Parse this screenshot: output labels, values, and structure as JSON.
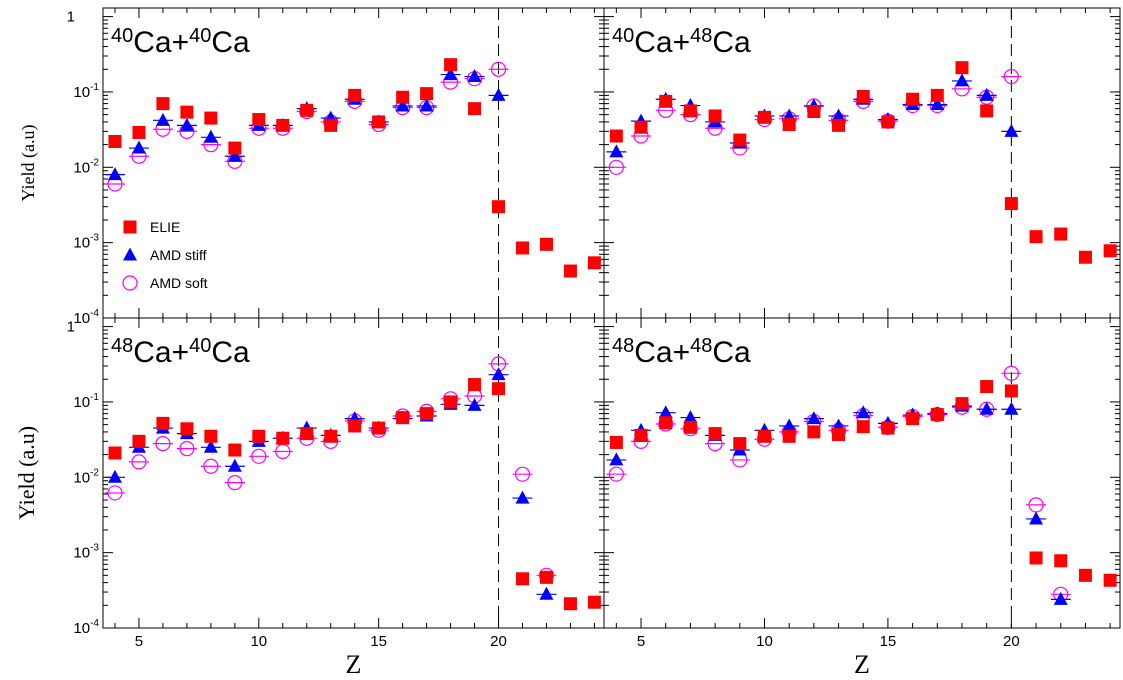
{
  "chart_data": {
    "type": "scatter",
    "xlabel": "Z",
    "ylabel": "Yield (a.u)",
    "xlim": [
      3.5,
      24.4
    ],
    "ylim": [
      0.0001,
      1.3
    ],
    "yscale": "log",
    "x_ticks": [
      "5",
      "10",
      "15",
      "20"
    ],
    "y_ticks": [
      {
        "base": "1",
        "exp": ""
      },
      {
        "base": "10",
        "exp": "-1"
      },
      {
        "base": "10",
        "exp": "-2"
      },
      {
        "base": "10",
        "exp": "-3"
      },
      {
        "base": "10",
        "exp": "-4"
      }
    ],
    "grid": false,
    "reference_line_x": 20,
    "legend": {
      "placement": "left-center of top-left panel",
      "entries": [
        "ELIE",
        "AMD stiff",
        "AMD soft"
      ]
    },
    "series_style": {
      "ELIE": {
        "marker": "square",
        "color": "#ff0000"
      },
      "AMD stiff": {
        "marker": "triangle",
        "color": "#0000ff"
      },
      "AMD soft": {
        "marker": "open-circle",
        "color": "#ff00ff"
      }
    },
    "panels": [
      {
        "title": {
          "m1": "40",
          "el1": "Ca+",
          "m2": "40",
          "el2": "Ca"
        },
        "series": [
          {
            "name": "ELIE",
            "x": [
              4,
              5,
              6,
              7,
              8,
              9,
              10,
              11,
              12,
              13,
              14,
              15,
              16,
              17,
              18,
              19,
              20,
              21,
              22,
              23,
              24
            ],
            "y": [
              0.022,
              0.029,
              0.07,
              0.054,
              0.045,
              0.018,
              0.043,
              0.036,
              0.057,
              0.036,
              0.09,
              0.04,
              0.085,
              0.095,
              0.23,
              0.06,
              0.003,
              0.00085,
              0.00095,
              0.00042,
              0.00054
            ]
          },
          {
            "name": "AMD stiff",
            "x": [
              4,
              5,
              6,
              7,
              8,
              9,
              10,
              11,
              12,
              13,
              14,
              15,
              16,
              17,
              18,
              19,
              20
            ],
            "y": [
              0.008,
              0.018,
              0.042,
              0.036,
              0.025,
              0.014,
              0.036,
              0.036,
              0.06,
              0.045,
              0.08,
              0.04,
              0.065,
              0.065,
              0.17,
              0.16,
              0.09
            ]
          },
          {
            "name": "AMD soft",
            "x": [
              4,
              5,
              6,
              7,
              8,
              9,
              10,
              11,
              12,
              13,
              14,
              15,
              16,
              17,
              18,
              19,
              20
            ],
            "y": [
              0.006,
              0.014,
              0.032,
              0.03,
              0.02,
              0.012,
              0.033,
              0.033,
              0.055,
              0.04,
              0.075,
              0.037,
              0.062,
              0.062,
              0.135,
              0.15,
              0.2
            ]
          }
        ]
      },
      {
        "title": {
          "m1": "40",
          "el1": "Ca+",
          "m2": "48",
          "el2": "Ca"
        },
        "series": [
          {
            "name": "ELIE",
            "x": [
              4,
              5,
              6,
              7,
              8,
              9,
              10,
              11,
              12,
              13,
              14,
              15,
              16,
              17,
              18,
              19,
              20,
              21,
              22,
              23,
              24
            ],
            "y": [
              0.026,
              0.034,
              0.075,
              0.056,
              0.048,
              0.023,
              0.046,
              0.037,
              0.055,
              0.036,
              0.087,
              0.04,
              0.08,
              0.09,
              0.21,
              0.056,
              0.0033,
              0.0012,
              0.0013,
              0.00064,
              0.00078
            ]
          },
          {
            "name": "AMD stiff",
            "x": [
              4,
              5,
              6,
              7,
              8,
              9,
              10,
              11,
              12,
              13,
              14,
              15,
              16,
              17,
              18,
              19,
              20
            ],
            "y": [
              0.016,
              0.041,
              0.08,
              0.066,
              0.04,
              0.021,
              0.048,
              0.048,
              0.065,
              0.048,
              0.08,
              0.043,
              0.068,
              0.068,
              0.14,
              0.09,
              0.03
            ]
          },
          {
            "name": "AMD soft",
            "x": [
              4,
              5,
              6,
              7,
              8,
              9,
              10,
              11,
              12,
              13,
              14,
              15,
              16,
              17,
              18,
              19,
              20
            ],
            "y": [
              0.01,
              0.026,
              0.057,
              0.05,
              0.033,
              0.018,
              0.043,
              0.044,
              0.065,
              0.042,
              0.075,
              0.041,
              0.066,
              0.066,
              0.11,
              0.085,
              0.16
            ]
          }
        ]
      },
      {
        "title": {
          "m1": "48",
          "el1": "Ca+",
          "m2": "40",
          "el2": "Ca"
        },
        "series": [
          {
            "name": "ELIE",
            "x": [
              4,
              5,
              6,
              7,
              8,
              9,
              10,
              11,
              12,
              13,
              14,
              15,
              16,
              17,
              18,
              19,
              20,
              21,
              22,
              23,
              24
            ],
            "y": [
              0.021,
              0.03,
              0.052,
              0.044,
              0.035,
              0.023,
              0.035,
              0.033,
              0.038,
              0.035,
              0.048,
              0.045,
              0.062,
              0.07,
              0.1,
              0.17,
              0.15,
              0.00045,
              0.00047,
              0.00021,
              0.00022
            ]
          },
          {
            "name": "AMD stiff",
            "x": [
              4,
              5,
              6,
              7,
              8,
              9,
              10,
              11,
              12,
              13,
              14,
              15,
              16,
              17,
              18,
              19,
              20,
              21,
              22
            ],
            "y": [
              0.01,
              0.025,
              0.045,
              0.038,
              0.025,
              0.014,
              0.03,
              0.033,
              0.045,
              0.036,
              0.06,
              0.045,
              0.06,
              0.065,
              0.093,
              0.09,
              0.23,
              0.0053,
              0.00028
            ]
          },
          {
            "name": "AMD soft",
            "x": [
              4,
              5,
              6,
              7,
              8,
              9,
              10,
              11,
              12,
              13,
              14,
              15,
              16,
              17,
              18,
              19,
              20,
              21,
              22
            ],
            "y": [
              0.0062,
              0.016,
              0.028,
              0.024,
              0.014,
              0.0085,
              0.019,
              0.022,
              0.033,
              0.03,
              0.056,
              0.042,
              0.065,
              0.075,
              0.11,
              0.12,
              0.32,
              0.011,
              0.0005
            ]
          }
        ]
      },
      {
        "title": {
          "m1": "48",
          "el1": "Ca+",
          "m2": "48",
          "el2": "Ca"
        },
        "series": [
          {
            "name": "ELIE",
            "x": [
              4,
              5,
              6,
              7,
              8,
              9,
              10,
              11,
              12,
              13,
              14,
              15,
              16,
              17,
              18,
              19,
              20,
              21,
              22,
              23,
              24
            ],
            "y": [
              0.029,
              0.036,
              0.053,
              0.046,
              0.038,
              0.028,
              0.035,
              0.035,
              0.04,
              0.037,
              0.047,
              0.045,
              0.06,
              0.068,
              0.095,
              0.16,
              0.14,
              0.00085,
              0.00078,
              0.0005,
              0.00043
            ]
          },
          {
            "name": "AMD stiff",
            "x": [
              4,
              5,
              6,
              7,
              8,
              9,
              10,
              11,
              12,
              13,
              14,
              15,
              16,
              17,
              18,
              19,
              20,
              21,
              22
            ],
            "y": [
              0.017,
              0.042,
              0.072,
              0.062,
              0.036,
              0.023,
              0.042,
              0.048,
              0.06,
              0.048,
              0.072,
              0.052,
              0.067,
              0.07,
              0.088,
              0.08,
              0.08,
              0.0028,
              0.00024
            ]
          },
          {
            "name": "AMD soft",
            "x": [
              4,
              5,
              6,
              7,
              8,
              9,
              10,
              11,
              12,
              13,
              14,
              15,
              16,
              17,
              18,
              19,
              20,
              21,
              22
            ],
            "y": [
              0.011,
              0.03,
              0.051,
              0.044,
              0.028,
              0.017,
              0.032,
              0.04,
              0.055,
              0.042,
              0.066,
              0.046,
              0.064,
              0.068,
              0.085,
              0.08,
              0.24,
              0.0043,
              0.00028
            ]
          }
        ]
      }
    ]
  }
}
